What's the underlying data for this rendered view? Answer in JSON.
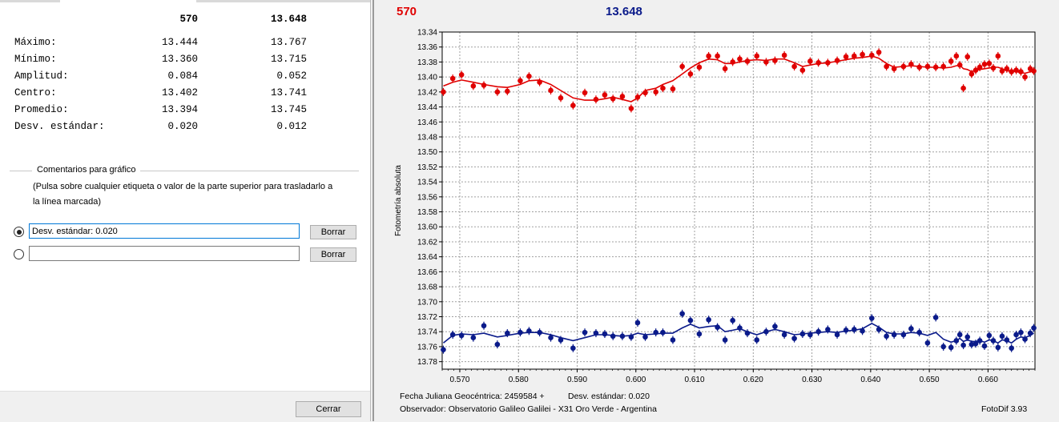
{
  "stats": {
    "header": {
      "col1": "570",
      "col2": "13.648"
    },
    "rows": [
      {
        "label": "Máximo:",
        "v1": "13.444",
        "v2": "13.767"
      },
      {
        "label": "Mínimo:",
        "v1": "13.360",
        "v2": "13.715"
      },
      {
        "label": "Amplitud:",
        "v1": "0.084",
        "v2": "0.052"
      },
      {
        "label": "Centro:",
        "v1": "13.402",
        "v2": "13.741"
      },
      {
        "label": "Promedio:",
        "v1": "13.394",
        "v2": "13.745"
      },
      {
        "label": "Desv. estándar:",
        "v1": "0.020",
        "v2": "0.012"
      }
    ]
  },
  "comments": {
    "group_title": "Comentarios para gráfico",
    "hint": "(Pulsa sobre cualquier etiqueta o valor de la parte superior para trasladarlo a la línea marcada)",
    "line1_value": "Desv. estándar: 0.020",
    "line2_value": "",
    "delete_label": "Borrar",
    "selected_line": 1
  },
  "close_label": "Cerrar",
  "chart_header": {
    "series1": "570",
    "series2": "13.648"
  },
  "colors": {
    "series1": "#e00000",
    "series2": "#0a1a8a"
  },
  "chart_data": {
    "type": "scatter",
    "ylabel": "Fotometría absoluta",
    "y_inverted": true,
    "ylim": [
      13.34,
      13.79
    ],
    "xlim": [
      0.567,
      0.668
    ],
    "x_ticks": [
      "0.570",
      "0.580",
      "0.590",
      "0.600",
      "0.610",
      "0.620",
      "0.630",
      "0.640",
      "0.650",
      "0.660"
    ],
    "y_ticks": [
      "13.34",
      "13.36",
      "13.38",
      "13.40",
      "13.42",
      "13.44",
      "13.46",
      "13.48",
      "13.50",
      "13.52",
      "13.54",
      "13.56",
      "13.58",
      "13.60",
      "13.62",
      "13.64",
      "13.66",
      "13.68",
      "13.70",
      "13.72",
      "13.74",
      "13.76",
      "13.78"
    ],
    "grid": true,
    "series": [
      {
        "name": "570",
        "color": "#e00000",
        "x": [
          0.5672,
          0.5688,
          0.5703,
          0.5723,
          0.5741,
          0.5764,
          0.5781,
          0.5803,
          0.5818,
          0.5836,
          0.5855,
          0.5872,
          0.5893,
          0.5913,
          0.5932,
          0.5947,
          0.5961,
          0.5977,
          0.5992,
          0.6003,
          0.6016,
          0.6034,
          0.6046,
          0.6063,
          0.6079,
          0.6093,
          0.6108,
          0.6124,
          0.6139,
          0.6152,
          0.6165,
          0.6177,
          0.619,
          0.6206,
          0.6222,
          0.6237,
          0.6253,
          0.627,
          0.6284,
          0.6297,
          0.6311,
          0.6327,
          0.6343,
          0.6358,
          0.6372,
          0.6386,
          0.6402,
          0.6414,
          0.6427,
          0.644,
          0.6456,
          0.6469,
          0.6483,
          0.6497,
          0.6511,
          0.6524,
          0.6537,
          0.6546,
          0.6552,
          0.6558,
          0.6565,
          0.6572,
          0.6579,
          0.6586,
          0.6594,
          0.6602,
          0.6609,
          0.6617,
          0.6624,
          0.6632,
          0.664,
          0.6648,
          0.6656,
          0.6663,
          0.6672,
          0.6678
        ],
        "y": [
          13.42,
          13.402,
          13.397,
          13.412,
          13.411,
          13.42,
          13.419,
          13.405,
          13.399,
          13.407,
          13.418,
          13.428,
          13.438,
          13.421,
          13.43,
          13.424,
          13.429,
          13.426,
          13.442,
          13.427,
          13.421,
          13.42,
          13.415,
          13.416,
          13.386,
          13.396,
          13.387,
          13.372,
          13.372,
          13.389,
          13.38,
          13.376,
          13.379,
          13.372,
          13.38,
          13.378,
          13.371,
          13.386,
          13.391,
          13.379,
          13.381,
          13.381,
          13.378,
          13.373,
          13.372,
          13.37,
          13.371,
          13.367,
          13.386,
          13.389,
          13.386,
          13.383,
          13.387,
          13.386,
          13.387,
          13.386,
          13.379,
          13.372,
          13.384,
          13.415,
          13.373,
          13.396,
          13.391,
          13.387,
          13.383,
          13.382,
          13.388,
          13.372,
          13.392,
          13.389,
          13.393,
          13.391,
          13.393,
          13.4,
          13.389,
          13.392
        ],
        "fit_y": [
          13.412,
          13.407,
          13.404,
          13.407,
          13.41,
          13.413,
          13.414,
          13.41,
          13.405,
          13.404,
          13.41,
          13.418,
          13.428,
          13.431,
          13.431,
          13.429,
          13.427,
          13.43,
          13.433,
          13.428,
          13.418,
          13.415,
          13.41,
          13.405,
          13.396,
          13.388,
          13.381,
          13.376,
          13.377,
          13.382,
          13.382,
          13.38,
          13.378,
          13.377,
          13.378,
          13.376,
          13.376,
          13.381,
          13.386,
          13.384,
          13.382,
          13.381,
          13.379,
          13.377,
          13.375,
          13.374,
          13.372,
          13.375,
          13.382,
          13.387,
          13.386,
          13.385,
          13.386,
          13.387,
          13.387,
          13.388,
          13.387,
          13.385,
          13.384,
          13.389,
          13.39,
          13.393,
          13.391,
          13.39,
          13.389,
          13.388,
          13.387,
          13.387,
          13.389,
          13.392,
          13.392,
          13.393,
          13.394,
          13.395,
          13.393,
          13.392
        ]
      },
      {
        "name": "13.648",
        "color": "#0a1a8a",
        "x": [
          0.5672,
          0.5688,
          0.5703,
          0.5723,
          0.5741,
          0.5764,
          0.5781,
          0.5803,
          0.5818,
          0.5836,
          0.5855,
          0.5872,
          0.5893,
          0.5913,
          0.5932,
          0.5947,
          0.5961,
          0.5977,
          0.5992,
          0.6003,
          0.6016,
          0.6034,
          0.6046,
          0.6063,
          0.6079,
          0.6093,
          0.6108,
          0.6124,
          0.6139,
          0.6152,
          0.6165,
          0.6177,
          0.619,
          0.6206,
          0.6222,
          0.6237,
          0.6253,
          0.627,
          0.6284,
          0.6297,
          0.6311,
          0.6327,
          0.6343,
          0.6358,
          0.6372,
          0.6386,
          0.6402,
          0.6414,
          0.6427,
          0.644,
          0.6456,
          0.6469,
          0.6483,
          0.6497,
          0.6511,
          0.6524,
          0.6537,
          0.6546,
          0.6552,
          0.6558,
          0.6565,
          0.6572,
          0.6579,
          0.6586,
          0.6594,
          0.6602,
          0.6609,
          0.6617,
          0.6624,
          0.6632,
          0.664,
          0.6648,
          0.6656,
          0.6663,
          0.6672,
          0.6678
        ],
        "y": [
          13.764,
          13.744,
          13.745,
          13.748,
          13.732,
          13.757,
          13.742,
          13.741,
          13.739,
          13.741,
          13.748,
          13.751,
          13.762,
          13.741,
          13.742,
          13.743,
          13.746,
          13.746,
          13.747,
          13.728,
          13.747,
          13.741,
          13.741,
          13.751,
          13.716,
          13.725,
          13.743,
          13.724,
          13.734,
          13.751,
          13.725,
          13.735,
          13.742,
          13.751,
          13.74,
          13.733,
          13.744,
          13.749,
          13.743,
          13.744,
          13.74,
          13.737,
          13.744,
          13.738,
          13.737,
          13.739,
          13.722,
          13.737,
          13.746,
          13.744,
          13.744,
          13.736,
          13.741,
          13.755,
          13.721,
          13.76,
          13.761,
          13.752,
          13.744,
          13.758,
          13.747,
          13.757,
          13.756,
          13.752,
          13.759,
          13.745,
          13.752,
          13.761,
          13.746,
          13.751,
          13.762,
          13.744,
          13.741,
          13.75,
          13.742,
          13.735
        ],
        "fit_y": [
          13.755,
          13.745,
          13.743,
          13.744,
          13.742,
          13.747,
          13.745,
          13.742,
          13.741,
          13.741,
          13.744,
          13.748,
          13.752,
          13.748,
          13.744,
          13.744,
          13.745,
          13.746,
          13.745,
          13.742,
          13.744,
          13.743,
          13.742,
          13.742,
          13.735,
          13.73,
          13.735,
          13.733,
          13.732,
          13.74,
          13.738,
          13.736,
          13.74,
          13.744,
          13.74,
          13.737,
          13.74,
          13.744,
          13.743,
          13.742,
          13.741,
          13.74,
          13.741,
          13.739,
          13.738,
          13.736,
          13.729,
          13.734,
          13.741,
          13.743,
          13.743,
          13.741,
          13.742,
          13.745,
          13.741,
          13.75,
          13.754,
          13.752,
          13.749,
          13.753,
          13.751,
          13.753,
          13.753,
          13.752,
          13.754,
          13.751,
          13.752,
          13.755,
          13.751,
          13.752,
          13.755,
          13.75,
          13.747,
          13.748,
          13.745,
          13.742
        ]
      }
    ]
  },
  "footer": {
    "jd": "Fecha Juliana Geocéntrica: 2459584 +",
    "stddev": "Desv. estándar: 0.020",
    "observer": "Observador: Observatorio Galileo Galilei - X31 Oro Verde - Argentina",
    "app": "FotoDif 3.93"
  }
}
